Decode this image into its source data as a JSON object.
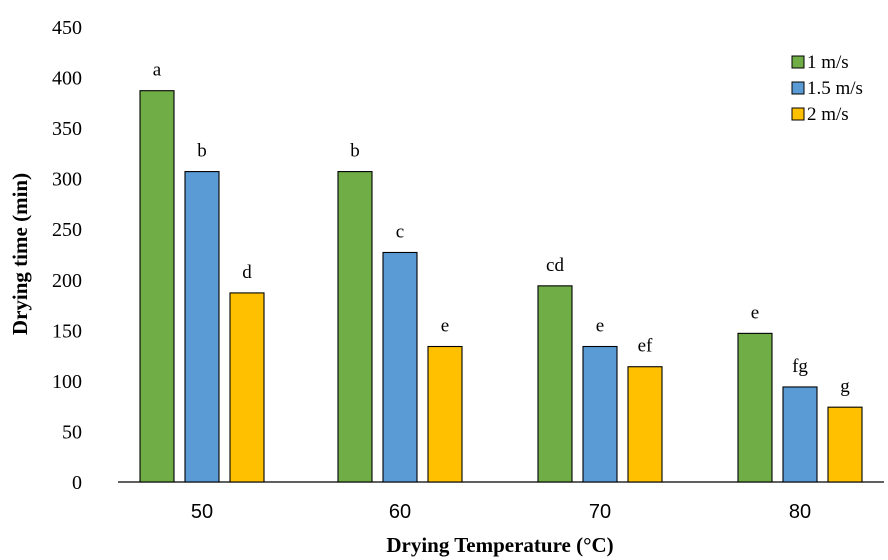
{
  "chart_data": {
    "type": "bar",
    "xlabel": "Drying Temperature (°C)",
    "ylabel": "Drying time (min)",
    "categories": [
      "50",
      "60",
      "70",
      "80"
    ],
    "ylim": [
      0,
      450
    ],
    "yticks": [
      "0",
      "50",
      "100",
      "150",
      "200",
      "250",
      "300",
      "350",
      "400",
      "450"
    ],
    "grid": false,
    "legend_position": "top-right",
    "series": [
      {
        "name": "1 m/s",
        "color": "#70ad47",
        "values": [
          387,
          307,
          194,
          147
        ],
        "labels": [
          "a",
          "b",
          "cd",
          "e"
        ]
      },
      {
        "name": "1.5 m/s",
        "color": "#5b9bd5",
        "values": [
          307,
          227,
          134,
          94
        ],
        "labels": [
          "b",
          "c",
          "e",
          "fg"
        ]
      },
      {
        "name": "2 m/s",
        "color": "#ffc000",
        "values": [
          187,
          134,
          114,
          74
        ],
        "labels": [
          "d",
          "e",
          "ef",
          "g"
        ]
      }
    ]
  }
}
